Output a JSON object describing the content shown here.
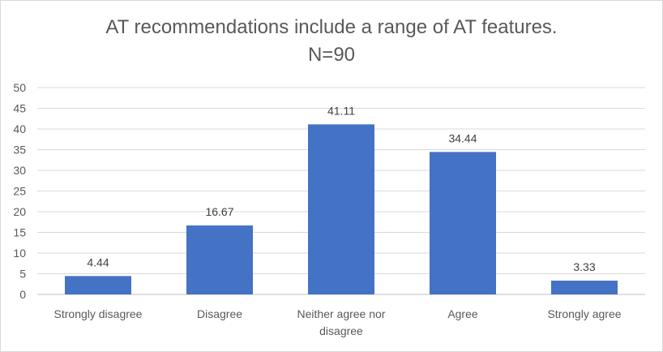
{
  "chart_data": {
    "type": "bar",
    "title": "AT recommendations include a range of AT features.",
    "subtitle": "N=90",
    "categories": [
      [
        "Strongly disagree"
      ],
      [
        "Disagree"
      ],
      [
        "Neither agree nor",
        "disagree"
      ],
      [
        "Agree"
      ],
      [
        "Strongly agree"
      ]
    ],
    "values": [
      4.44,
      16.67,
      41.11,
      34.44,
      3.33
    ],
    "value_labels": [
      "4.44",
      "16.67",
      "41.11",
      "34.44",
      "3.33"
    ],
    "ylim": [
      0,
      50
    ],
    "yticks": [
      0,
      5,
      10,
      15,
      20,
      25,
      30,
      35,
      40,
      45,
      50
    ],
    "ytick_labels": [
      "0",
      "5",
      "10",
      "15",
      "20",
      "25",
      "30",
      "35",
      "40",
      "45",
      "50"
    ],
    "grid": true,
    "bar_color": "#4472c4",
    "grid_color": "#d9d9d9",
    "text_color": "#595959",
    "label_color": "#404040"
  }
}
